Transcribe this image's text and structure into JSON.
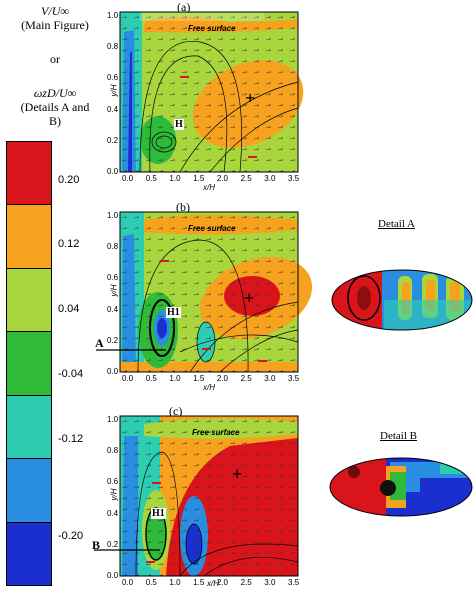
{
  "legend": {
    "line1": "V/U∞",
    "line2": "(Main Figure)",
    "line3": "or",
    "line4": "ωzD/U∞",
    "line5": "(Details A and",
    "line6": "B)",
    "levels": [
      "0.20",
      "0.12",
      "0.04",
      "-0.04",
      "-0.12",
      "-0.20"
    ],
    "colors": [
      "#d9141b",
      "#f6a21f",
      "#a8d63c",
      "#2fba3a",
      "#2ecdb2",
      "#2a8ee0",
      "#1b2ecf"
    ]
  },
  "panels": [
    {
      "label": "(a)",
      "vortex": "H",
      "marker": "+",
      "free_surface": "Free surface"
    },
    {
      "label": "(b)",
      "vortex": "H1",
      "marker": "+",
      "free_surface": "Free surface",
      "callout": "A"
    },
    {
      "label": "(c)",
      "vortex": "H1",
      "marker": "+",
      "free_surface": "Free surface",
      "callout": "B"
    }
  ],
  "axes": {
    "xlabel": "x/H",
    "ylabel": "y/H",
    "xticks": [
      "0.0",
      "0.5",
      "1.0",
      "1.5",
      "2.0",
      "2.5",
      "3.0",
      "3.5"
    ],
    "yticks": [
      "0.0",
      "0.2",
      "0.4",
      "0.6",
      "0.8",
      "1.0"
    ]
  },
  "details": [
    {
      "title": "Detail A"
    },
    {
      "title": "Detail B"
    }
  ]
}
